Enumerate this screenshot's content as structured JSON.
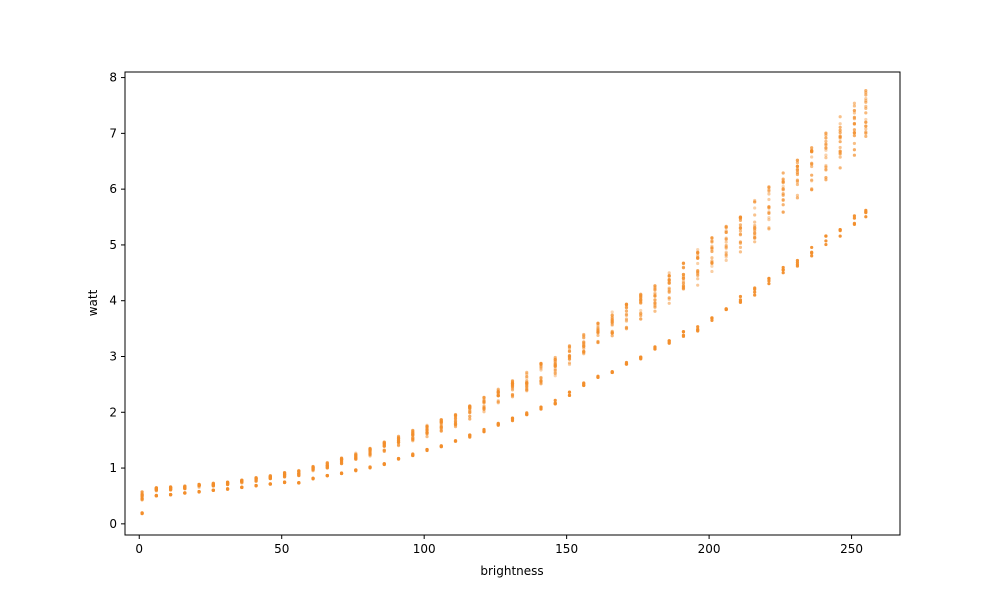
{
  "chart_data": {
    "type": "scatter",
    "title": "",
    "xlabel": "brightness",
    "ylabel": "watt",
    "xlim": [
      -5,
      267
    ],
    "ylim": [
      -0.2,
      8.1
    ],
    "xticks": [
      0,
      50,
      100,
      150,
      200,
      250
    ],
    "yticks": [
      0,
      1,
      2,
      3,
      4,
      5,
      6,
      7,
      8
    ],
    "grid": false,
    "legend": "none",
    "colors": {
      "marker": "#f28e2b",
      "axis": "#000000",
      "background": "#ffffff"
    },
    "series": [
      {
        "x": [
          1,
          6,
          11,
          16,
          21,
          26,
          31,
          36,
          41,
          46,
          51,
          56,
          61,
          66,
          71,
          76,
          81,
          86,
          91,
          96,
          101,
          106,
          111,
          116,
          121,
          126,
          131,
          136,
          141,
          146,
          151,
          156,
          161,
          166,
          171,
          176,
          181,
          186,
          191,
          196,
          201,
          206,
          211,
          216,
          221,
          226,
          231,
          236,
          241,
          246,
          251,
          255
        ],
        "ymin": [
          0.18,
          0.5,
          0.52,
          0.55,
          0.57,
          0.6,
          0.62,
          0.65,
          0.68,
          0.71,
          0.74,
          0.73,
          0.8,
          0.85,
          0.9,
          0.95,
          1.0,
          1.05,
          1.15,
          1.22,
          1.3,
          1.38,
          1.45,
          1.55,
          1.65,
          1.75,
          1.85,
          1.95,
          2.05,
          2.15,
          2.3,
          2.45,
          2.6,
          2.7,
          2.85,
          2.95,
          3.1,
          3.2,
          3.35,
          3.45,
          3.6,
          3.8,
          3.95,
          4.1,
          4.3,
          4.45,
          4.6,
          4.8,
          5.0,
          5.15,
          5.35,
          5.5
        ],
        "ymax": [
          0.58,
          0.65,
          0.67,
          0.69,
          0.71,
          0.73,
          0.75,
          0.79,
          0.83,
          0.87,
          0.92,
          0.97,
          1.03,
          1.1,
          1.18,
          1.27,
          1.37,
          1.47,
          1.58,
          1.68,
          1.77,
          1.87,
          1.97,
          2.12,
          2.27,
          2.42,
          2.57,
          2.72,
          2.88,
          3.03,
          3.2,
          3.4,
          3.6,
          3.8,
          3.95,
          4.15,
          4.3,
          4.5,
          4.7,
          4.95,
          5.15,
          5.4,
          5.6,
          5.8,
          6.05,
          6.3,
          6.55,
          6.8,
          7.05,
          7.3,
          7.55,
          7.8
        ]
      }
    ]
  }
}
